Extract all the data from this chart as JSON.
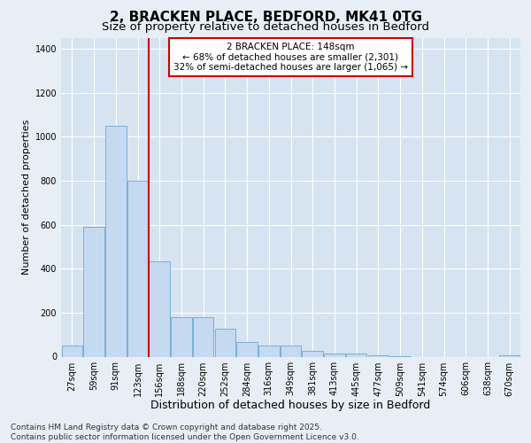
{
  "title": "2, BRACKEN PLACE, BEDFORD, MK41 0TG",
  "subtitle": "Size of property relative to detached houses in Bedford",
  "xlabel": "Distribution of detached houses by size in Bedford",
  "ylabel": "Number of detached properties",
  "categories": [
    "27sqm",
    "59sqm",
    "91sqm",
    "123sqm",
    "156sqm",
    "188sqm",
    "220sqm",
    "252sqm",
    "284sqm",
    "316sqm",
    "349sqm",
    "381sqm",
    "413sqm",
    "445sqm",
    "477sqm",
    "509sqm",
    "541sqm",
    "574sqm",
    "606sqm",
    "638sqm",
    "670sqm"
  ],
  "values": [
    50,
    590,
    1050,
    800,
    435,
    180,
    180,
    125,
    65,
    50,
    50,
    25,
    15,
    15,
    5,
    2,
    0,
    0,
    0,
    0,
    5
  ],
  "bar_color": "#c5d9f0",
  "bar_edge_color": "#7bafd4",
  "vline_x_index": 4,
  "vline_color": "#cc0000",
  "annotation_text": "2 BRACKEN PLACE: 148sqm\n← 68% of detached houses are smaller (2,301)\n32% of semi-detached houses are larger (1,065) →",
  "annotation_box_color": "#ffffff",
  "annotation_box_edge": "#cc0000",
  "bg_color": "#e8eef5",
  "plot_bg": "#d6e4f2",
  "ylim": [
    0,
    1450
  ],
  "yticks": [
    0,
    200,
    400,
    600,
    800,
    1000,
    1200,
    1400
  ],
  "footnote": "Contains HM Land Registry data © Crown copyright and database right 2025.\nContains public sector information licensed under the Open Government Licence v3.0.",
  "title_fontsize": 11,
  "subtitle_fontsize": 9.5,
  "xlabel_fontsize": 9,
  "ylabel_fontsize": 8,
  "tick_fontsize": 7,
  "annotation_fontsize": 7.5,
  "footnote_fontsize": 6.5
}
